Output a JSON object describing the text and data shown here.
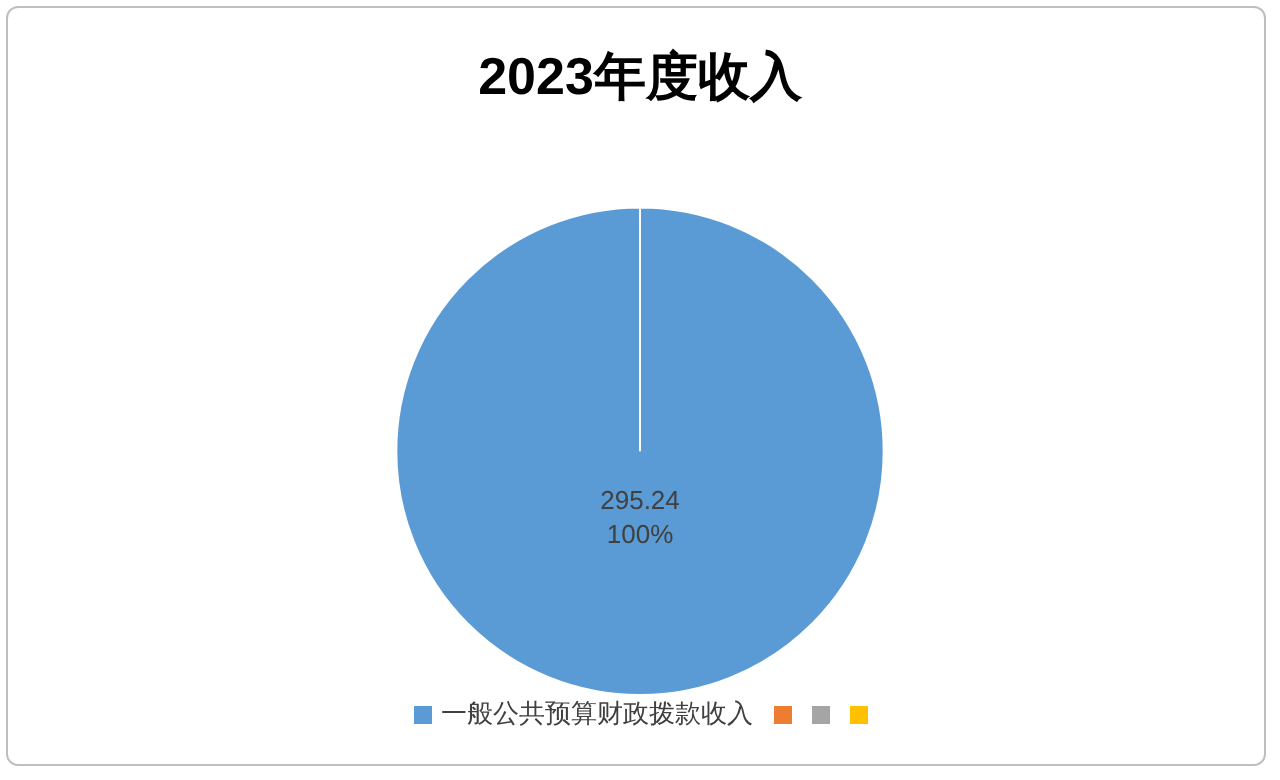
{
  "chart_data": {
    "type": "pie",
    "title": "2023年度收入",
    "categories": [
      "一般公共预算财政拨款收入",
      null,
      null,
      null
    ],
    "values": [
      295.24,
      0,
      0,
      0
    ],
    "colors": [
      "#5b9bd5",
      "#ed7d31",
      "#a5a5a5",
      "#ffc000"
    ],
    "data_labels": true,
    "annotations": [
      "100%"
    ],
    "legend": "bottom"
  }
}
